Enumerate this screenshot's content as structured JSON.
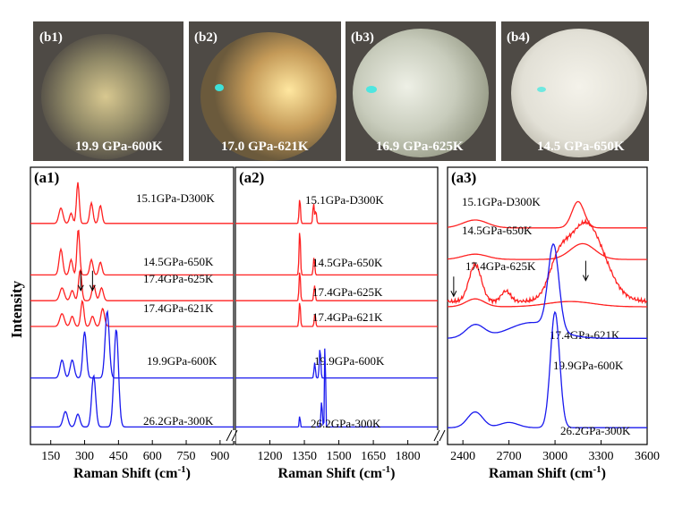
{
  "photos": [
    {
      "id": "b1",
      "label": "(b1)",
      "caption": "19.9 GPa-600K",
      "fill": "#9a9070"
    },
    {
      "id": "b2",
      "label": "(b2)",
      "caption": "17.0 GPa-621K",
      "fill": "#c4a060"
    },
    {
      "id": "b3",
      "label": "(b3)",
      "caption": "16.9 GPa-625K",
      "fill": "#c9cfc2"
    },
    {
      "id": "b4",
      "label": "(b4)",
      "caption": "14.5 GPa-650K",
      "fill": "#e6e4dc"
    }
  ],
  "shared_ylabel": "Intensity",
  "colors": {
    "heat": "#ff2020",
    "cool": "#1a1aee",
    "photo_bg": "#4e4a45"
  },
  "chart_data": [
    {
      "type": "line",
      "panel": "(a1)",
      "xlabel": "Raman Shift (cm",
      "xlabel_sup": "-1",
      "xlabel_end": ")",
      "xlim": [
        60,
        960
      ],
      "xticks": [
        150,
        300,
        450,
        600,
        750,
        900
      ],
      "ylim": [
        0,
        100
      ],
      "series": [
        {
          "name": "15.1GPa-D300K",
          "color": "red",
          "base": 82,
          "peaks": [
            [
              195,
              6,
              9
            ],
            [
              240,
              4,
              7
            ],
            [
              270,
              16,
              6
            ],
            [
              330,
              8,
              7
            ],
            [
              370,
              7,
              7
            ]
          ]
        },
        {
          "name": "14.5GPa-650K",
          "color": "red",
          "base": 62,
          "peaks": [
            [
              195,
              10,
              8
            ],
            [
              240,
              6,
              7
            ],
            [
              272,
              18,
              6
            ],
            [
              330,
              6,
              7
            ],
            [
              370,
              5,
              7
            ]
          ]
        },
        {
          "name": "17.4GPa-625K",
          "color": "red",
          "base": 52,
          "peaks": [
            [
              200,
              5,
              10
            ],
            [
              245,
              4,
              8
            ],
            [
              280,
              12,
              7
            ],
            [
              340,
              6,
              8
            ],
            [
              375,
              5,
              8
            ]
          ]
        },
        {
          "name": "17.4GPa-621K",
          "color": "red",
          "base": 42,
          "peaks": [
            [
              200,
              5,
              10
            ],
            [
              245,
              4,
              8
            ],
            [
              290,
              10,
              7
            ],
            [
              335,
              4,
              8
            ],
            [
              380,
              7,
              8
            ]
          ]
        },
        {
          "name": "19.9GPa-600K",
          "color": "blue",
          "base": 22,
          "peaks": [
            [
              200,
              7,
              9
            ],
            [
              245,
              7,
              9
            ],
            [
              300,
              18,
              8
            ],
            [
              400,
              26,
              9
            ]
          ]
        },
        {
          "name": "26.2GPa-300K",
          "color": "blue",
          "base": 3,
          "peaks": [
            [
              215,
              6,
              10
            ],
            [
              270,
              5,
              9
            ],
            [
              340,
              20,
              9
            ],
            [
              440,
              38,
              10
            ]
          ]
        }
      ],
      "arrows": [
        [
          283,
          56
        ],
        [
          335,
          56
        ]
      ]
    },
    {
      "type": "line",
      "panel": "(a2)",
      "xlabel": "Raman Shift (cm",
      "xlabel_sup": "-1",
      "xlabel_end": ")",
      "xlim": [
        1050,
        1930
      ],
      "xticks": [
        1200,
        1350,
        1500,
        1650,
        1800
      ],
      "ylim": [
        0,
        100
      ],
      "series": [
        {
          "name": "15.1GPa-D300K",
          "color": "red",
          "base": 82,
          "peaks": [
            [
              1330,
              10,
              3
            ],
            [
              1390,
              8,
              3
            ],
            [
              1400,
              5,
              3
            ]
          ]
        },
        {
          "name": "14.5GPa-650K",
          "color": "red",
          "base": 62,
          "peaks": [
            [
              1330,
              18,
              3
            ],
            [
              1392,
              7,
              3
            ]
          ]
        },
        {
          "name": "17.4GPa-625K",
          "color": "red",
          "base": 52,
          "peaks": [
            [
              1330,
              12,
              3
            ],
            [
              1394,
              6,
              3
            ]
          ]
        },
        {
          "name": "17.4GPa-621K",
          "color": "red",
          "base": 42,
          "peaks": [
            [
              1330,
              10,
              3
            ],
            [
              1396,
              5,
              3
            ]
          ]
        },
        {
          "name": "19.9GPa-600K",
          "color": "blue",
          "base": 22,
          "peaks": [
            [
              1395,
              6,
              3
            ],
            [
              1418,
              12,
              3
            ]
          ]
        },
        {
          "name": "26.2GPa-300K",
          "color": "blue",
          "base": 3,
          "peaks": [
            [
              1330,
              5,
              2
            ],
            [
              1425,
              10,
              3
            ],
            [
              1440,
              38,
              2
            ]
          ]
        }
      ],
      "arrows": []
    },
    {
      "type": "line",
      "panel": "(a3)",
      "xlabel": "Raman Shift (cm",
      "xlabel_sup": "-1",
      "xlabel_end": ")",
      "xlim": [
        2300,
        3600
      ],
      "xticks": [
        2400,
        2700,
        3000,
        3300,
        3600
      ],
      "ylim": [
        0,
        100
      ],
      "series": [
        {
          "name": "15.1GPa-D300K",
          "color": "red",
          "base": 80,
          "peaks": [
            [
              2480,
              3,
              80
            ],
            [
              3150,
              10,
              40
            ]
          ]
        },
        {
          "name": "14.5GPa-650K",
          "color": "red",
          "base": 68,
          "peaks": [
            [
              2480,
              2,
              80
            ],
            [
              3180,
              6,
              80
            ]
          ]
        },
        {
          "name": "17.4GPa-625K",
          "color": "red",
          "base": 52,
          "peaks": [
            [
              2480,
              14,
              40
            ],
            [
              2680,
              4,
              30
            ],
            [
              3020,
              10,
              60
            ],
            [
              3200,
              30,
              120
            ]
          ]
        },
        {
          "name": "17.4GPa-621K",
          "color": "red",
          "base": 50,
          "peaks": [
            [
              2480,
              3,
              60
            ],
            [
              3100,
              2,
              150
            ]
          ]
        },
        {
          "name": "19.9GPa-600K",
          "color": "blue",
          "base": 38,
          "peaks": [
            [
              2480,
              5,
              60
            ],
            [
              2850,
              6,
              150
            ],
            [
              2990,
              32,
              35
            ]
          ]
        },
        {
          "name": "26.2GPa-300K",
          "color": "blue",
          "base": 4,
          "peaks": [
            [
              2480,
              6,
              50
            ],
            [
              2700,
              2,
              60
            ],
            [
              3000,
              44,
              30
            ]
          ]
        }
      ],
      "arrows": [
        [
          2340,
          54
        ],
        [
          3200,
          60
        ]
      ]
    }
  ]
}
